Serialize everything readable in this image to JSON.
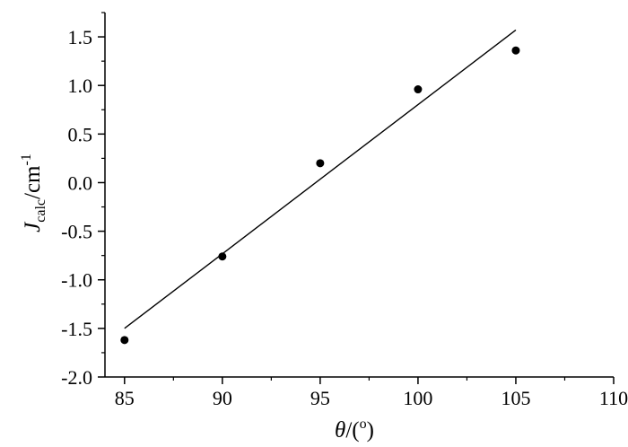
{
  "chart_data": {
    "type": "scatter",
    "title": "",
    "xlabel": {
      "main": "θ",
      "suffix_open": "/(",
      "superscript": "o",
      "suffix_close": ")"
    },
    "ylabel": {
      "main": "J",
      "subscript": "calc",
      "unit": "/cm",
      "superscript": "-1"
    },
    "xlim": [
      84,
      110
    ],
    "ylim": [
      -2.0,
      1.75
    ],
    "x_ticks": [
      85,
      90,
      95,
      100,
      105,
      110
    ],
    "x_tick_labels": [
      "85",
      "90",
      "95",
      "100",
      "105",
      "110"
    ],
    "y_ticks": [
      -2.0,
      -1.5,
      -1.0,
      -0.5,
      0.0,
      0.5,
      1.0,
      1.5
    ],
    "y_tick_labels": [
      "-2.0",
      "-1.5",
      "-1.0",
      "-0.5",
      "0.0",
      "0.5",
      "1.0",
      "1.5"
    ],
    "grid": false,
    "series": [
      {
        "x": [
          85,
          90,
          95,
          100,
          105
        ],
        "y": [
          -1.62,
          -0.76,
          0.2,
          0.96,
          1.36
        ],
        "marker": "circle",
        "color": "#000000"
      }
    ],
    "fit_line": {
      "x": [
        85,
        105
      ],
      "y": [
        -1.5,
        1.57
      ],
      "color": "#000000"
    }
  }
}
